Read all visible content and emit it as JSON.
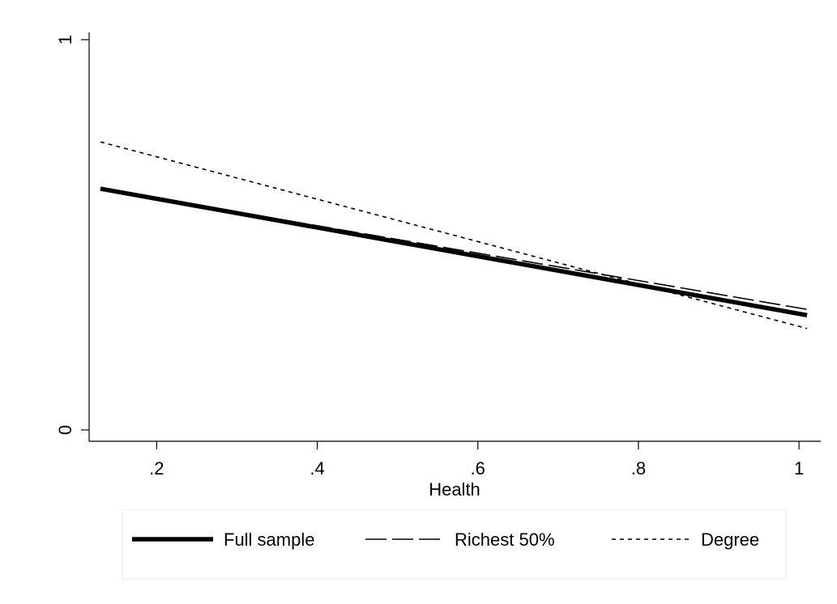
{
  "chart_data": {
    "type": "line",
    "xlabel": "Health",
    "ylabel": "",
    "xlim": [
      0.13,
      1.01
    ],
    "ylim": [
      0,
      1
    ],
    "x_ticks": [
      {
        "value": 0.2,
        "label": ".2"
      },
      {
        "value": 0.4,
        "label": ".4"
      },
      {
        "value": 0.6,
        "label": ".6"
      },
      {
        "value": 0.8,
        "label": ".8"
      },
      {
        "value": 1.0,
        "label": "1"
      }
    ],
    "y_ticks": [
      {
        "value": 0,
        "label": "0"
      },
      {
        "value": 1,
        "label": "1"
      }
    ],
    "grid": false,
    "legend_position": "bottom",
    "series": [
      {
        "name": "Full sample",
        "style": "solid-thick",
        "x": [
          0.13,
          1.01
        ],
        "y": [
          0.618,
          0.294
        ]
      },
      {
        "name": "Richest 50%",
        "style": "long-dash",
        "x": [
          0.13,
          1.01
        ],
        "y": [
          0.618,
          0.309
        ]
      },
      {
        "name": "Degree",
        "style": "short-dash",
        "x": [
          0.13,
          1.01
        ],
        "y": [
          0.738,
          0.26
        ]
      }
    ]
  }
}
